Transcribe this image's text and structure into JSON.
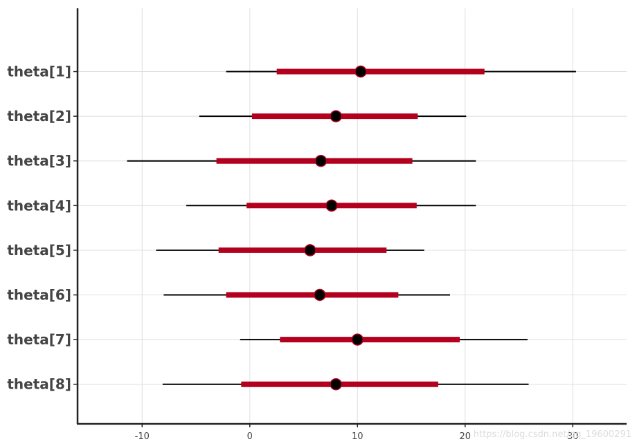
{
  "chart_data": {
    "type": "interval",
    "categories": [
      "theta[1]",
      "theta[2]",
      "theta[3]",
      "theta[4]",
      "theta[5]",
      "theta[6]",
      "theta[7]",
      "theta[8]"
    ],
    "points": [
      {
        "param": "theta[1]",
        "median": 10.3,
        "inner": [
          2.5,
          21.8
        ],
        "outer": [
          -2.2,
          30.3
        ]
      },
      {
        "param": "theta[2]",
        "median": 8.0,
        "inner": [
          0.2,
          15.6
        ],
        "outer": [
          -4.7,
          20.1
        ]
      },
      {
        "param": "theta[3]",
        "median": 6.6,
        "inner": [
          -3.1,
          15.1
        ],
        "outer": [
          -11.4,
          21.0
        ]
      },
      {
        "param": "theta[4]",
        "median": 7.6,
        "inner": [
          -0.3,
          15.5
        ],
        "outer": [
          -5.9,
          21.0
        ]
      },
      {
        "param": "theta[5]",
        "median": 5.6,
        "inner": [
          -2.9,
          12.7
        ],
        "outer": [
          -8.7,
          16.2
        ]
      },
      {
        "param": "theta[6]",
        "median": 6.5,
        "inner": [
          -2.2,
          13.8
        ],
        "outer": [
          -8.0,
          18.6
        ]
      },
      {
        "param": "theta[7]",
        "median": 10.0,
        "inner": [
          2.8,
          19.5
        ],
        "outer": [
          -0.9,
          25.8
        ]
      },
      {
        "param": "theta[8]",
        "median": 8.0,
        "inner": [
          -0.8,
          17.5
        ],
        "outer": [
          -8.1,
          25.9
        ]
      }
    ],
    "x_ticks": [
      -10,
      0,
      10,
      20,
      30
    ],
    "xlim": [
      -16,
      35
    ],
    "grid": true,
    "colors": {
      "inner": "#b3001e",
      "outer": "#000000",
      "point": "#000000",
      "point_edge": "#b3001e",
      "grid": "#dedede",
      "axis": "#222222"
    },
    "watermark": "https://blog.csdn.net/qq_19600291"
  }
}
